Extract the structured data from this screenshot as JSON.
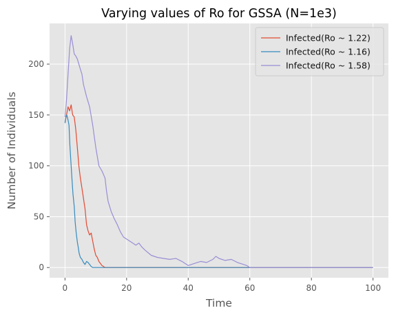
{
  "chart_data": {
    "type": "line",
    "title": "Varying values of Ro for GSSA (N=1e3)",
    "xlabel": "Time",
    "ylabel": "Number of Individuals",
    "xlim": [
      -5,
      105
    ],
    "ylim": [
      -10,
      240
    ],
    "xticks": [
      "0",
      "20",
      "40",
      "60",
      "80",
      "100"
    ],
    "yticks": [
      "0",
      "50",
      "100",
      "150",
      "200"
    ],
    "grid": true,
    "legend_position": "top-right",
    "series": [
      {
        "name": "Infected(Ro ~ 1.22)",
        "color": "#e24a33",
        "points": [
          [
            0,
            143
          ],
          [
            0.5,
            150
          ],
          [
            1,
            158
          ],
          [
            1.5,
            154
          ],
          [
            2,
            160
          ],
          [
            2.5,
            150
          ],
          [
            3,
            148
          ],
          [
            3.5,
            136
          ],
          [
            4,
            118
          ],
          [
            4.5,
            100
          ],
          [
            5,
            88
          ],
          [
            5.5,
            78
          ],
          [
            6,
            68
          ],
          [
            6.5,
            58
          ],
          [
            7,
            42
          ],
          [
            7.5,
            36
          ],
          [
            8,
            32
          ],
          [
            8.5,
            34
          ],
          [
            9,
            26
          ],
          [
            9.5,
            18
          ],
          [
            10,
            12
          ],
          [
            10.5,
            10
          ],
          [
            11,
            6
          ],
          [
            11.5,
            4
          ],
          [
            12,
            2
          ],
          [
            12.5,
            1
          ],
          [
            13,
            0
          ],
          [
            100,
            0
          ]
        ]
      },
      {
        "name": "Infected(Ro ~ 1.16)",
        "color": "#348abd",
        "points": [
          [
            0,
            142
          ],
          [
            0.3,
            148
          ],
          [
            0.6,
            150
          ],
          [
            1,
            145
          ],
          [
            1.3,
            140
          ],
          [
            1.6,
            120
          ],
          [
            2,
            100
          ],
          [
            2.3,
            85
          ],
          [
            2.6,
            72
          ],
          [
            3,
            60
          ],
          [
            3.3,
            45
          ],
          [
            3.6,
            35
          ],
          [
            4,
            25
          ],
          [
            4.3,
            20
          ],
          [
            4.6,
            14
          ],
          [
            5,
            10
          ],
          [
            5.5,
            8
          ],
          [
            6,
            5
          ],
          [
            6.5,
            3
          ],
          [
            7,
            6
          ],
          [
            7.5,
            5
          ],
          [
            8,
            3
          ],
          [
            8.5,
            1
          ],
          [
            9,
            0
          ],
          [
            100,
            0
          ]
        ]
      },
      {
        "name": "Infected(Ro ~ 1.58)",
        "color": "#988ed5",
        "points": [
          [
            0,
            148
          ],
          [
            0.5,
            165
          ],
          [
            1,
            190
          ],
          [
            1.5,
            215
          ],
          [
            2,
            228
          ],
          [
            2.5,
            220
          ],
          [
            3,
            210
          ],
          [
            3.5,
            208
          ],
          [
            4,
            205
          ],
          [
            5,
            195
          ],
          [
            5.5,
            190
          ],
          [
            6,
            180
          ],
          [
            7,
            168
          ],
          [
            8,
            158
          ],
          [
            9,
            140
          ],
          [
            10,
            118
          ],
          [
            11,
            100
          ],
          [
            12,
            95
          ],
          [
            13,
            88
          ],
          [
            13.5,
            75
          ],
          [
            14,
            65
          ],
          [
            15,
            55
          ],
          [
            16,
            48
          ],
          [
            17,
            42
          ],
          [
            18,
            35
          ],
          [
            19,
            30
          ],
          [
            20,
            28
          ],
          [
            22,
            24
          ],
          [
            23,
            22
          ],
          [
            24,
            24
          ],
          [
            25,
            20
          ],
          [
            26,
            17
          ],
          [
            28,
            12
          ],
          [
            30,
            10
          ],
          [
            32,
            9
          ],
          [
            34,
            8
          ],
          [
            36,
            9
          ],
          [
            38,
            6
          ],
          [
            40,
            2
          ],
          [
            42,
            4
          ],
          [
            44,
            6
          ],
          [
            46,
            5
          ],
          [
            48,
            8
          ],
          [
            49,
            11
          ],
          [
            50,
            9
          ],
          [
            52,
            7
          ],
          [
            54,
            8
          ],
          [
            56,
            5
          ],
          [
            58,
            3
          ],
          [
            59,
            2
          ],
          [
            60,
            0
          ],
          [
            100,
            0
          ]
        ]
      }
    ]
  }
}
